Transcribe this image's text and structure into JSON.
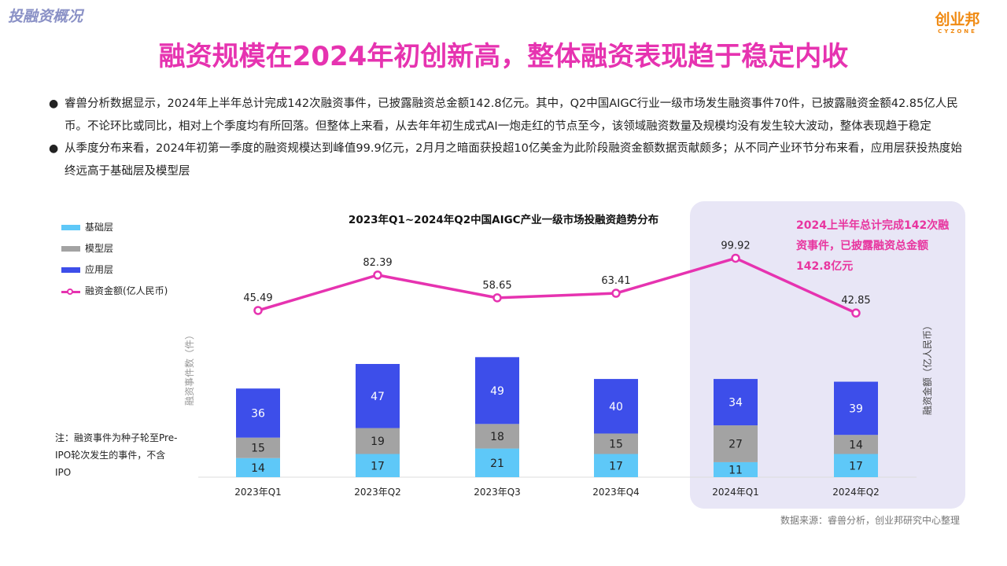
{
  "header": {
    "corner_tag": "投融资概况",
    "logo_main": "创业邦",
    "logo_sub": "CYZONE",
    "title": "融资规模在2024年初创新高，整体融资表现趋于稳定内收"
  },
  "summary": {
    "bullet_symbol": "●",
    "bullets": [
      "睿兽分析数据显示，2024年上半年总计完成142次融资事件，已披露融资总金额142.8亿元。其中，Q2中国AIGC行业一级市场发生融资事件70件，已披露融资金额42.85亿人民币。不论环比或同比，相对上个季度均有所回落。但整体上来看，从去年年初生成式AI一炮走红的节点至今，该领域融资数量及规模均没有发生较大波动，整体表现趋于稳定",
      "从季度分布来看，2024年初第一季度的融资规模达到峰值99.9亿元，2月月之暗面获投超10亿美金为此阶段融资金额数据贡献颇多；从不同产业环节分布来看，应用层获投热度始终远高于基础层及模型层"
    ]
  },
  "callout": "2024上半年总计完成142次融资事件，已披露融资总金额142.8亿元",
  "note": "注：融资事件为种子轮至Pre-IPO轮次发生的事件，不含IPO",
  "source": "数据来源：睿兽分析，创业邦研究中心整理",
  "colors": {
    "base_layer": "#5ec8f8",
    "model_layer": "#a3a3a3",
    "app_layer": "#3d4eea",
    "amount_line": "#e633b0",
    "highlight_bg": "#e8e6f6",
    "title": "#e633b0"
  },
  "chart_data": {
    "type": "bar",
    "title": "2023年Q1~2024年Q2中国AIGC产业一级市场投融资趋势分布",
    "categories": [
      "2023年Q1",
      "2023年Q2",
      "2023年Q3",
      "2023年Q4",
      "2024年Q1",
      "2024年Q2"
    ],
    "stacked": true,
    "series": [
      {
        "name": "基础层",
        "values": [
          14,
          17,
          21,
          17,
          11,
          17
        ]
      },
      {
        "name": "模型层",
        "values": [
          15,
          19,
          18,
          15,
          27,
          14
        ]
      },
      {
        "name": "应用层",
        "values": [
          36,
          47,
          49,
          40,
          34,
          39
        ]
      }
    ],
    "line_series": {
      "name": "融资金额(亿人民币)",
      "values": [
        45.49,
        82.39,
        58.65,
        63.41,
        99.92,
        42.85
      ]
    },
    "ylabel_left": "融资事件数（件）",
    "ylabel_right": "融资金额（亿人民币）",
    "legend_position": "top-left",
    "highlight_categories": [
      "2024年Q1",
      "2024年Q2"
    ],
    "grid": false
  }
}
